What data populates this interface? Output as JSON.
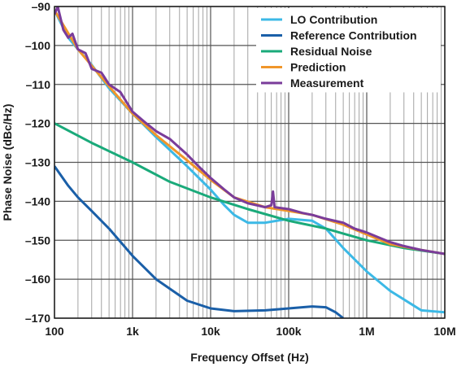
{
  "chart_data": {
    "type": "line",
    "title": "",
    "xlabel": "Frequency Offset (Hz)",
    "ylabel": "Phase Noise (dBc/Hz)",
    "x_scale": "log",
    "xlim": [
      100,
      10000000
    ],
    "ylim": [
      -170,
      -90
    ],
    "x_ticks": [
      {
        "value": 100,
        "label": "100"
      },
      {
        "value": 1000,
        "label": "1k"
      },
      {
        "value": 10000,
        "label": "10k"
      },
      {
        "value": 100000,
        "label": "100k"
      },
      {
        "value": 1000000,
        "label": "1M"
      },
      {
        "value": 10000000,
        "label": "10M"
      }
    ],
    "y_ticks": [
      {
        "value": -90,
        "label": "–90"
      },
      {
        "value": -100,
        "label": "–100"
      },
      {
        "value": -110,
        "label": "–110"
      },
      {
        "value": -120,
        "label": "–120"
      },
      {
        "value": -130,
        "label": "–130"
      },
      {
        "value": -140,
        "label": "–140"
      },
      {
        "value": -150,
        "label": "–150"
      },
      {
        "value": -160,
        "label": "–160"
      },
      {
        "value": -170,
        "label": "–170"
      }
    ],
    "grid": true,
    "legend_position": "top-right",
    "series": [
      {
        "name": "LO Contribution",
        "color": "#3cb9e6",
        "points": [
          [
            100,
            -91
          ],
          [
            150,
            -98
          ],
          [
            200,
            -101
          ],
          [
            300,
            -105
          ],
          [
            500,
            -111
          ],
          [
            1000,
            -117.5
          ],
          [
            2000,
            -123.5
          ],
          [
            5000,
            -131
          ],
          [
            10000,
            -137
          ],
          [
            15000,
            -141
          ],
          [
            20000,
            -143.5
          ],
          [
            30000,
            -145.5
          ],
          [
            50000,
            -145.5
          ],
          [
            100000,
            -144.5
          ],
          [
            200000,
            -145
          ],
          [
            300000,
            -147
          ],
          [
            500000,
            -152
          ],
          [
            1000000,
            -158
          ],
          [
            2000000,
            -163
          ],
          [
            5000000,
            -168
          ],
          [
            10000000,
            -168.5
          ]
        ]
      },
      {
        "name": "Reference Contribution",
        "color": "#1a5fa8",
        "points": [
          [
            100,
            -131
          ],
          [
            150,
            -136
          ],
          [
            200,
            -139
          ],
          [
            300,
            -142.5
          ],
          [
            500,
            -147
          ],
          [
            1000,
            -154
          ],
          [
            2000,
            -160
          ],
          [
            5000,
            -165.5
          ],
          [
            10000,
            -167.5
          ],
          [
            20000,
            -168.2
          ],
          [
            50000,
            -168
          ],
          [
            100000,
            -167.5
          ],
          [
            200000,
            -167
          ],
          [
            300000,
            -167.2
          ],
          [
            400000,
            -168.5
          ],
          [
            500000,
            -170
          ]
        ]
      },
      {
        "name": "Residual Noise",
        "color": "#1aaa7a",
        "points": [
          [
            100,
            -120
          ],
          [
            300,
            -125
          ],
          [
            1000,
            -130
          ],
          [
            3000,
            -135
          ],
          [
            10000,
            -139
          ],
          [
            30000,
            -142
          ],
          [
            100000,
            -145
          ],
          [
            300000,
            -147
          ],
          [
            1000000,
            -150
          ],
          [
            3000000,
            -152
          ],
          [
            10000000,
            -153.5
          ]
        ]
      },
      {
        "name": "Prediction",
        "color": "#f0962a",
        "points": [
          [
            100,
            -91
          ],
          [
            200,
            -101
          ],
          [
            500,
            -110.5
          ],
          [
            1000,
            -117.5
          ],
          [
            2000,
            -123
          ],
          [
            5000,
            -129.5
          ],
          [
            10000,
            -134.5
          ],
          [
            20000,
            -139
          ],
          [
            50000,
            -141.5
          ],
          [
            100000,
            -142.5
          ],
          [
            200000,
            -143.5
          ],
          [
            500000,
            -146
          ],
          [
            1000000,
            -148.5
          ],
          [
            2000000,
            -151
          ],
          [
            5000000,
            -152.5
          ],
          [
            10000000,
            -153.5
          ]
        ]
      },
      {
        "name": "Measurement",
        "color": "#7a3c9a",
        "points": [
          [
            100,
            -92
          ],
          [
            110,
            -90
          ],
          [
            130,
            -96
          ],
          [
            150,
            -98
          ],
          [
            170,
            -97
          ],
          [
            200,
            -101
          ],
          [
            250,
            -102
          ],
          [
            300,
            -106
          ],
          [
            400,
            -107
          ],
          [
            500,
            -110
          ],
          [
            700,
            -112
          ],
          [
            1000,
            -117
          ],
          [
            1500,
            -120
          ],
          [
            2000,
            -122
          ],
          [
            3000,
            -124
          ],
          [
            5000,
            -128
          ],
          [
            7000,
            -131
          ],
          [
            10000,
            -134
          ],
          [
            15000,
            -137
          ],
          [
            20000,
            -139
          ],
          [
            30000,
            -140.5
          ],
          [
            50000,
            -141.5
          ],
          [
            60000,
            -141
          ],
          [
            63000,
            -137.5
          ],
          [
            66000,
            -141.5
          ],
          [
            100000,
            -142
          ],
          [
            150000,
            -143
          ],
          [
            200000,
            -143.5
          ],
          [
            300000,
            -144.5
          ],
          [
            500000,
            -145.5
          ],
          [
            700000,
            -147
          ],
          [
            1000000,
            -148
          ],
          [
            2000000,
            -150.5
          ],
          [
            3000000,
            -151.5
          ],
          [
            5000000,
            -152.5
          ],
          [
            10000000,
            -153.5
          ]
        ]
      }
    ]
  }
}
